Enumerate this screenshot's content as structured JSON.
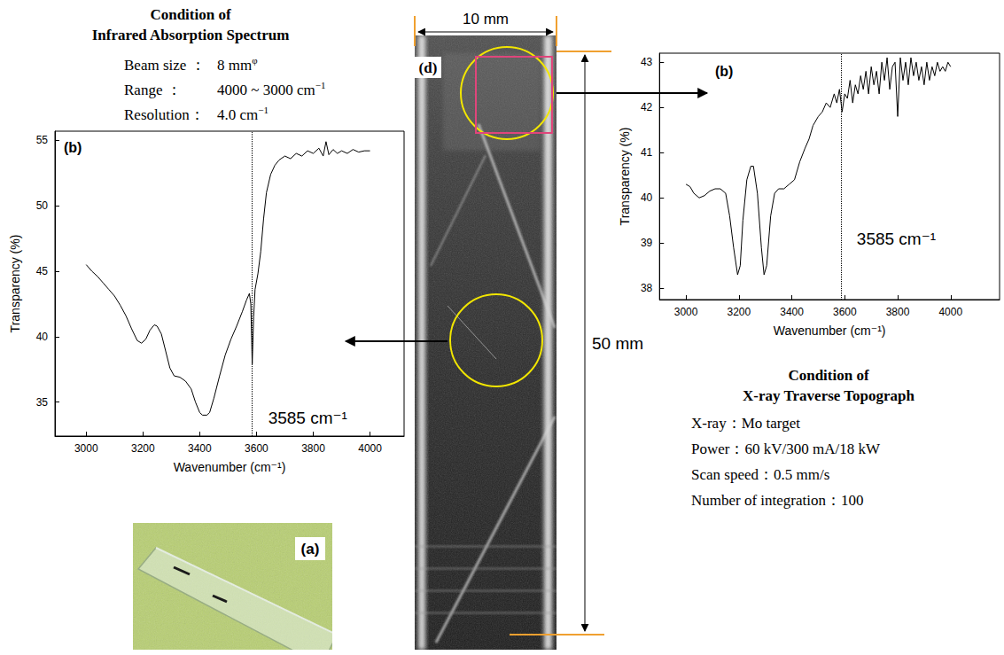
{
  "chart_data": [
    {
      "type": "line",
      "label": "(b)",
      "x_label": "Wavenumber (cm⁻¹)",
      "y_label": "Transparency (%)",
      "color": "#000000",
      "marker": "none",
      "grid": false,
      "xlim": [
        2890,
        4120
      ],
      "xticks": [
        3000,
        3200,
        3400,
        3600,
        3800,
        4000
      ],
      "ylim": [
        32.4,
        55.7
      ],
      "yticks": [
        35,
        40,
        45,
        50,
        55
      ],
      "reference_line": {
        "x": 3585,
        "label": "3585 cm⁻¹",
        "line_style": "dotted"
      },
      "x": [
        3000,
        3020,
        3040,
        3060,
        3080,
        3100,
        3120,
        3140,
        3160,
        3180,
        3195,
        3210,
        3225,
        3240,
        3250,
        3265,
        3280,
        3295,
        3310,
        3330,
        3350,
        3370,
        3385,
        3400,
        3410,
        3425,
        3435,
        3450,
        3470,
        3490,
        3510,
        3530,
        3550,
        3565,
        3575,
        3580,
        3585,
        3590,
        3595,
        3605,
        3615,
        3625,
        3635,
        3650,
        3665,
        3680,
        3700,
        3720,
        3740,
        3760,
        3780,
        3800,
        3820,
        3835,
        3845,
        3855,
        3870,
        3885,
        3900,
        3920,
        3940,
        3960,
        3980,
        4000
      ],
      "values": [
        45.5,
        45.0,
        44.6,
        44.1,
        43.6,
        43.1,
        42.4,
        41.6,
        40.6,
        39.7,
        39.5,
        39.8,
        40.5,
        40.9,
        40.8,
        40.2,
        38.9,
        37.6,
        37.0,
        36.9,
        36.6,
        36.0,
        35.0,
        34.2,
        34.0,
        34.0,
        34.2,
        35.3,
        37.0,
        38.6,
        39.8,
        40.8,
        41.9,
        42.8,
        43.3,
        42.5,
        37.9,
        41.5,
        43.6,
        44.8,
        46.5,
        49.0,
        51.0,
        52.4,
        53.1,
        53.5,
        53.8,
        53.6,
        54.0,
        53.8,
        54.2,
        54.0,
        54.4,
        53.8,
        54.9,
        53.9,
        54.3,
        54.0,
        54.2,
        54.0,
        54.3,
        54.1,
        54.2,
        54.2
      ]
    },
    {
      "type": "line",
      "label": "(b)",
      "x_label": "Wavenumber (cm⁻¹)",
      "y_label": "Transparency (%)",
      "color": "#000000",
      "marker": "none",
      "grid": false,
      "xlim": [
        2900,
        4185
      ],
      "xticks": [
        3000,
        3200,
        3400,
        3600,
        3800,
        4000
      ],
      "ylim": [
        37.75,
        43.2
      ],
      "yticks": [
        38,
        39,
        40,
        41,
        42,
        43
      ],
      "reference_line": {
        "x": 3585,
        "label": "3585 cm⁻¹",
        "line_style": "dotted"
      },
      "x": [
        3000,
        3015,
        3030,
        3050,
        3070,
        3090,
        3110,
        3130,
        3150,
        3165,
        3180,
        3195,
        3205,
        3215,
        3230,
        3245,
        3255,
        3270,
        3285,
        3295,
        3305,
        3320,
        3335,
        3350,
        3370,
        3390,
        3410,
        3430,
        3450,
        3465,
        3480,
        3500,
        3515,
        3530,
        3545,
        3560,
        3570,
        3580,
        3590,
        3600,
        3610,
        3620,
        3630,
        3640,
        3650,
        3660,
        3670,
        3680,
        3690,
        3700,
        3710,
        3720,
        3730,
        3740,
        3750,
        3760,
        3770,
        3780,
        3790,
        3800,
        3810,
        3820,
        3830,
        3840,
        3850,
        3860,
        3870,
        3880,
        3890,
        3900,
        3910,
        3920,
        3930,
        3940,
        3950,
        3960,
        3970,
        3980,
        3990,
        4000
      ],
      "values": [
        40.3,
        40.25,
        40.1,
        40.0,
        40.05,
        40.15,
        40.2,
        40.2,
        40.1,
        39.6,
        38.9,
        38.3,
        38.5,
        39.5,
        40.4,
        40.7,
        40.7,
        40.1,
        38.9,
        38.3,
        38.5,
        39.6,
        40.1,
        40.2,
        40.2,
        40.3,
        40.4,
        40.8,
        41.1,
        41.3,
        41.6,
        41.8,
        41.9,
        42.1,
        42.0,
        42.3,
        42.1,
        42.4,
        41.9,
        42.3,
        42.2,
        42.6,
        42.1,
        42.5,
        42.3,
        42.7,
        42.4,
        42.8,
        42.3,
        42.9,
        42.5,
        42.8,
        42.3,
        43.0,
        42.6,
        43.1,
        42.4,
        42.9,
        43.0,
        41.8,
        43.1,
        42.6,
        43.0,
        42.5,
        43.1,
        42.7,
        43.0,
        42.6,
        42.9,
        42.5,
        43.0,
        42.6,
        42.9,
        42.7,
        43.0,
        42.8,
        42.9,
        42.8,
        43.0,
        42.9
      ]
    }
  ],
  "ir_conditions": {
    "title": [
      "Condition of",
      "Infrared Absorption Spectrum"
    ],
    "rows": [
      {
        "label": "Beam size ：",
        "value": "8 mm",
        "sup": "φ"
      },
      {
        "label": "Range ：",
        "value": "4000 ~ 3000 cm",
        "sup": "−1"
      },
      {
        "label": "Resolution：",
        "value": "4.0 cm",
        "sup": "−1"
      }
    ]
  },
  "xray_conditions": {
    "title": [
      "Condition of",
      "X-ray Traverse Topograph"
    ],
    "rows": [
      "X-ray：Mo target",
      "Power：60 kV/300 mA/18 kW",
      "Scan speed：0.5 mm/s",
      "Number of integration：100"
    ]
  },
  "topograph": {
    "label": "(d)",
    "width_label": "10 mm",
    "height_label": "50 mm"
  },
  "photo": {
    "label": "(a)"
  }
}
